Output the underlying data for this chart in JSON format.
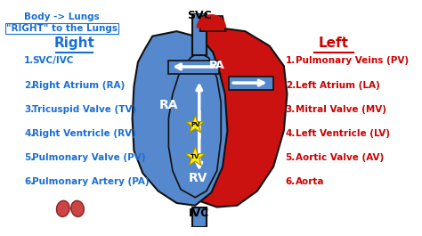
{
  "bg_color": "#ffffff",
  "title_top_left": [
    "Body -> Lungs",
    "\"RIGHT\" to the Lungs"
  ],
  "right_header": "Right",
  "left_header": "Left",
  "right_items": [
    "SVC/IVC",
    "Right Atrium (RA)",
    "Tricuspid Valve (TV)",
    "Right Ventricle (RV)",
    "Pulmonary Valve (PV)",
    "Pulmonary Artery (PA)"
  ],
  "left_items": [
    "Pulmonary Veins (PV)",
    "Left Atrium (LA)",
    "Mitral Valve (MV)",
    "Left Ventricle (LV)",
    "Aortic Valve (AV)",
    "Aorta"
  ],
  "blue_color": "#1a6fd4",
  "red_color": "#cc0000",
  "heart_red": "#cc1111",
  "heart_blue": "#5588cc",
  "outline_color": "#111111",
  "arrow_white": "#ffffff",
  "star_yellow": "#ffee00",
  "label_svc": "SVC",
  "label_ivc": "IVC",
  "label_pa": "PA",
  "label_ra": "RA",
  "label_rv": "RV",
  "label_tv": "TV",
  "label_pv": "PV"
}
